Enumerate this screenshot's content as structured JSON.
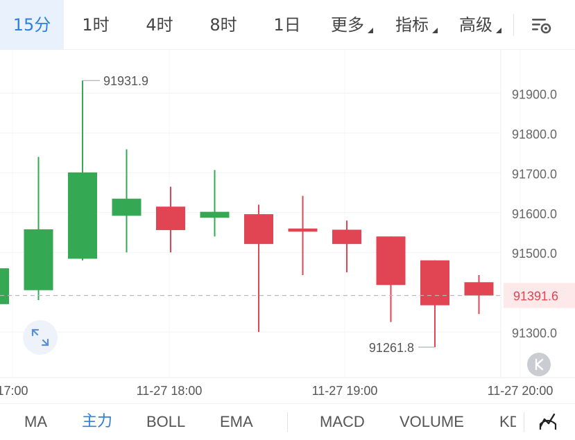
{
  "timeframes": [
    {
      "label": "15分",
      "active": true
    },
    {
      "label": "1时"
    },
    {
      "label": "4时"
    },
    {
      "label": "8时"
    },
    {
      "label": "1日"
    },
    {
      "label": "更多",
      "dropdown": true
    },
    {
      "label": "指标",
      "dropdown": true
    },
    {
      "label": "高级",
      "dropdown": true
    }
  ],
  "indicators": {
    "main": [
      {
        "label": "MA"
      },
      {
        "label": "主力",
        "active": true
      },
      {
        "label": "BOLL"
      },
      {
        "label": "EMA"
      }
    ],
    "sub": [
      {
        "label": "MACD"
      },
      {
        "label": "VOLUME"
      },
      {
        "label": "KD"
      }
    ]
  },
  "icons": {
    "settings": "chart-settings-icon",
    "expand": "expand-icon",
    "scroll_latest": "k-latest-icon",
    "chart_type": "line-chart-icon"
  },
  "colors": {
    "up": "#34a853",
    "down": "#e14452",
    "accent": "#2d7fe0",
    "price_line": "#b5b8bd",
    "last_price_bg": "#fde8ea"
  },
  "chart_data": {
    "type": "candlestick",
    "y_axis": {
      "ticks": [
        "91900.0",
        "91800.0",
        "91700.0",
        "91600.0",
        "91500.0",
        "91300.0"
      ],
      "range": [
        91220,
        91995
      ]
    },
    "x_axis": {
      "ticks": [
        "17:00",
        "11-27 18:00",
        "11-27 19:00",
        "11-27 20:00"
      ]
    },
    "candles": [
      {
        "open": 91370,
        "close": 91460,
        "high": 91520,
        "low": 91340
      },
      {
        "open": 91405,
        "close": 91558,
        "high": 91740,
        "low": 91380
      },
      {
        "open": 91484,
        "close": 91701,
        "high": 91931.9,
        "low": 91480
      },
      {
        "open": 91592,
        "close": 91635,
        "high": 91759,
        "low": 91500
      },
      {
        "open": 91615,
        "close": 91556,
        "high": 91665,
        "low": 91500
      },
      {
        "open": 91587,
        "close": 91602,
        "high": 91707,
        "low": 91540
      },
      {
        "open": 91596,
        "close": 91521,
        "high": 91620,
        "low": 91300
      },
      {
        "open": 91560,
        "close": 91552,
        "high": 91642,
        "low": 91443
      },
      {
        "open": 91557,
        "close": 91521,
        "high": 91580,
        "low": 91450
      },
      {
        "open": 91540,
        "close": 91418,
        "high": 91540,
        "low": 91325
      },
      {
        "open": 91480,
        "close": 91367,
        "high": 91480,
        "low": 91261.8
      },
      {
        "open": 91425,
        "close": 91391.6,
        "high": 91443,
        "low": 91345
      }
    ],
    "high_label": "91931.9",
    "low_label": "91261.8",
    "last_price": "91391.6",
    "last_price_value": 91391.6
  }
}
